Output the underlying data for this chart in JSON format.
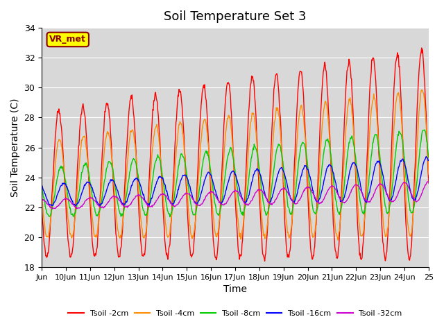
{
  "title": "Soil Temperature Set 3",
  "xlabel": "Time",
  "ylabel": "Soil Temperature (C)",
  "ylim": [
    18,
    34
  ],
  "n_days": 16,
  "x_tick_positions": [
    0,
    1,
    2,
    3,
    4,
    5,
    6,
    7,
    8,
    9,
    10,
    11,
    12,
    13,
    14,
    15,
    16
  ],
  "x_tick_labels": [
    "Jun",
    "10Jun",
    "11Jun",
    "12Jun",
    "13Jun",
    "14Jun",
    "15Jun",
    "16Jun",
    "17Jun",
    "18Jun",
    "19Jun",
    "20Jun",
    "21Jun",
    "22Jun",
    "23Jun",
    "24Jun",
    "25"
  ],
  "y_ticks": [
    18,
    20,
    22,
    24,
    26,
    28,
    30,
    32,
    34
  ],
  "legend_labels": [
    "Tsoil -2cm",
    "Tsoil -4cm",
    "Tsoil -8cm",
    "Tsoil -16cm",
    "Tsoil -32cm"
  ],
  "colors": [
    "#ff0000",
    "#ff8c00",
    "#00cc00",
    "#0000ff",
    "#cc00cc"
  ],
  "bg_color": "#e8e8e8",
  "plot_bg_color": "#d8d8d8",
  "watermark": "VR_met",
  "watermark_bg": "#ffff00",
  "watermark_fg": "#8b0000",
  "linewidth": 1.0
}
